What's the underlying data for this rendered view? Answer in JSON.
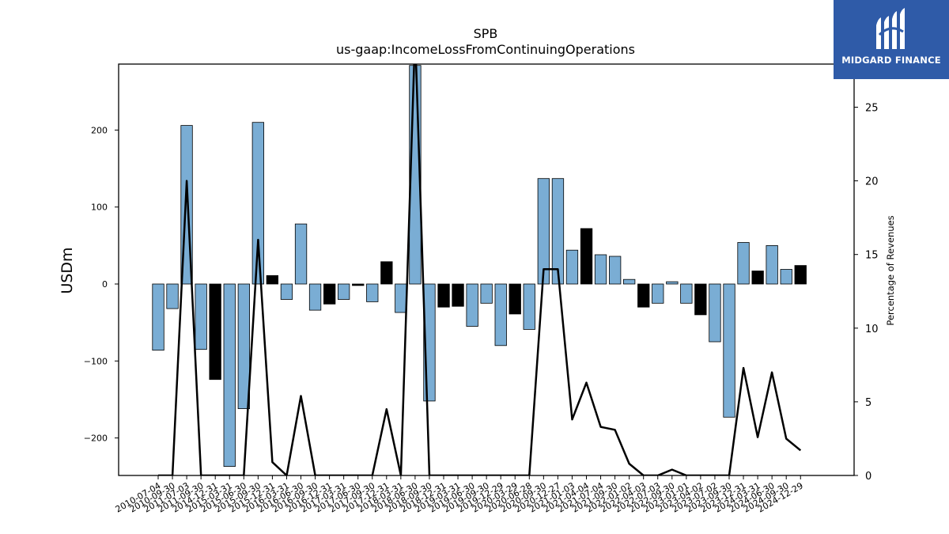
{
  "brand": {
    "name": "MIDGARD FINANCE",
    "bg_color": "#2f5ba8",
    "icon": "midgard-logo-icon"
  },
  "chart_data": {
    "type": "bar",
    "title": "SPB",
    "subtitle": "us-gaap:IncomeLossFromContinuingOperations",
    "ylabel": "USDm",
    "y2label": "Percentage of Revenues",
    "ylim": [
      -250,
      284
    ],
    "y2lim": [
      0,
      27
    ],
    "yticks": [
      -200,
      -100,
      0,
      100,
      200
    ],
    "y2ticks": [
      0,
      5,
      10,
      15,
      20,
      25
    ],
    "colors": {
      "positive_bar": "#7aadd4",
      "highlight_bar": "#000000",
      "line": "#000000"
    },
    "categories": [
      "2010-07-04",
      "2010-09-30",
      "2011-07-03",
      "2011-09-30",
      "2014-12-31",
      "2015-03-31",
      "2015-06-30",
      "2015-09-30",
      "2015-12-31",
      "2016-03-31",
      "2016-06-30",
      "2016-09-30",
      "2016-12-31",
      "2017-03-31",
      "2017-06-30",
      "2017-09-30",
      "2017-12-31",
      "2018-03-31",
      "2018-06-30",
      "2018-09-30",
      "2018-12-31",
      "2019-03-31",
      "2019-06-30",
      "2019-09-30",
      "2019-12-29",
      "2020-03-29",
      "2020-06-28",
      "2020-09-30",
      "2020-12-27",
      "2021-01-03",
      "2021-04-04",
      "2021-07-04",
      "2021-09-30",
      "2022-01-02",
      "2022-04-03",
      "2022-07-03",
      "2022-09-30",
      "2023-01-01",
      "2023-04-02",
      "2023-07-02",
      "2023-09-30",
      "2023-12-31",
      "2024-03-31",
      "2024-06-30",
      "2024-09-30",
      "2024-12-29"
    ],
    "tick_labels_shown": [
      "2010-07-04",
      "2010-09-30",
      "2011-07-03",
      "2011-09-30",
      "2014-12-31",
      "2015-03-31",
      "2015-06-30",
      "2015-09-30",
      "2015-12-31",
      "2016-03-31",
      "2016-06-30",
      "2016-09-30",
      "2016-12-31",
      "2017-03-31",
      "2017-06-30",
      "2017-09-30",
      "2017-12-31",
      "2018-03-31",
      "2018-06-30",
      "2018-09-30",
      "2018-12-31",
      "2019-03-31",
      "2019-06-30",
      "2019-09-30",
      "2019-12-29",
      "2020-03-29",
      "2020-06-28",
      "2020-09-30",
      "2020-12-27",
      "2021-01-03",
      "2021-04-04",
      "2021-07-04",
      "2021-09-30",
      "2022-01-02",
      "2022-04-03",
      "2022-07-03",
      "2022-09-30",
      "2023-01-01",
      "2023-04-02",
      "2023-07-02",
      "2023-09-30",
      "2023-12-31",
      "2024-03-31",
      "2024-06-30",
      "2024-09-30",
      "2024-12-29"
    ],
    "bars": [
      {
        "x": "2010-07-04",
        "value": -86,
        "highlight": false
      },
      {
        "x": "2010-09-30",
        "value": -32,
        "highlight": false
      },
      {
        "x": "2011-07-03",
        "value": 206,
        "highlight": false
      },
      {
        "x": "2011-09-30",
        "value": -85,
        "highlight": false
      },
      {
        "x": "2014-12-31",
        "value": -124,
        "highlight": true
      },
      {
        "x": "2015-03-31",
        "value": -237,
        "highlight": false
      },
      {
        "x": "2015-06-30",
        "value": -162,
        "highlight": false
      },
      {
        "x": "2015-09-30",
        "value": 210,
        "highlight": false
      },
      {
        "x": "2015-12-31",
        "value": 11,
        "highlight": true
      },
      {
        "x": "2016-03-31",
        "value": -20,
        "highlight": false
      },
      {
        "x": "2016-06-30",
        "value": 78,
        "highlight": false
      },
      {
        "x": "2016-09-30",
        "value": -34,
        "highlight": false
      },
      {
        "x": "2016-12-31",
        "value": -26,
        "highlight": true
      },
      {
        "x": "2017-03-31",
        "value": -20,
        "highlight": false
      },
      {
        "x": "2017-06-30",
        "value": -2,
        "highlight": true
      },
      {
        "x": "2017-09-30",
        "value": -23,
        "highlight": false
      },
      {
        "x": "2017-12-31",
        "value": 29,
        "highlight": true
      },
      {
        "x": "2018-03-31",
        "value": -37,
        "highlight": false
      },
      {
        "x": "2018-06-30",
        "value": 284,
        "highlight": false
      },
      {
        "x": "2018-09-30",
        "value": -152,
        "highlight": false
      },
      {
        "x": "2018-12-31",
        "value": -30,
        "highlight": true
      },
      {
        "x": "2019-03-31",
        "value": -29,
        "highlight": true
      },
      {
        "x": "2019-06-30",
        "value": -55,
        "highlight": false
      },
      {
        "x": "2019-09-30",
        "value": -25,
        "highlight": false
      },
      {
        "x": "2019-12-29",
        "value": -80,
        "highlight": false
      },
      {
        "x": "2020-03-29",
        "value": -39,
        "highlight": true
      },
      {
        "x": "2020-06-28",
        "value": -59,
        "highlight": false
      },
      {
        "x": "2020-09-30",
        "value": 137,
        "highlight": false
      },
      {
        "x": "2020-12-27",
        "value": 137,
        "highlight": false
      },
      {
        "x": "2021-01-03",
        "value": 44,
        "highlight": false
      },
      {
        "x": "2021-04-04",
        "value": 72,
        "highlight": true
      },
      {
        "x": "2021-07-04",
        "value": 38,
        "highlight": false
      },
      {
        "x": "2021-09-30",
        "value": 36,
        "highlight": false
      },
      {
        "x": "2022-01-02",
        "value": 6,
        "highlight": false
      },
      {
        "x": "2022-04-03",
        "value": -30,
        "highlight": true
      },
      {
        "x": "2022-07-03",
        "value": -25,
        "highlight": false
      },
      {
        "x": "2022-09-30",
        "value": 3,
        "highlight": false
      },
      {
        "x": "2023-01-01",
        "value": -25,
        "highlight": false
      },
      {
        "x": "2023-04-02",
        "value": -40,
        "highlight": true
      },
      {
        "x": "2023-07-02",
        "value": -75,
        "highlight": false
      },
      {
        "x": "2023-09-30",
        "value": -173,
        "highlight": false
      },
      {
        "x": "2023-12-31",
        "value": 54,
        "highlight": false
      },
      {
        "x": "2024-03-31",
        "value": 17,
        "highlight": true
      },
      {
        "x": "2024-06-30",
        "value": 50,
        "highlight": false
      },
      {
        "x": "2024-09-30",
        "value": 19,
        "highlight": false
      },
      {
        "x": "2024-12-29",
        "value": 24,
        "highlight": true
      }
    ],
    "line_series": {
      "axis": "secondary",
      "values": [
        0,
        0,
        20.0,
        0,
        0,
        0,
        0,
        16.0,
        0.9,
        0,
        5.4,
        0,
        0,
        0,
        0,
        0,
        4.5,
        0,
        30,
        0,
        0,
        0,
        0,
        0,
        0,
        0,
        0,
        14.0,
        14.0,
        3.8,
        6.3,
        3.3,
        3.1,
        0.8,
        0,
        0,
        0.4,
        0,
        0,
        0,
        0,
        7.3,
        2.6,
        7.0,
        2.5,
        1.7
      ]
    }
  }
}
